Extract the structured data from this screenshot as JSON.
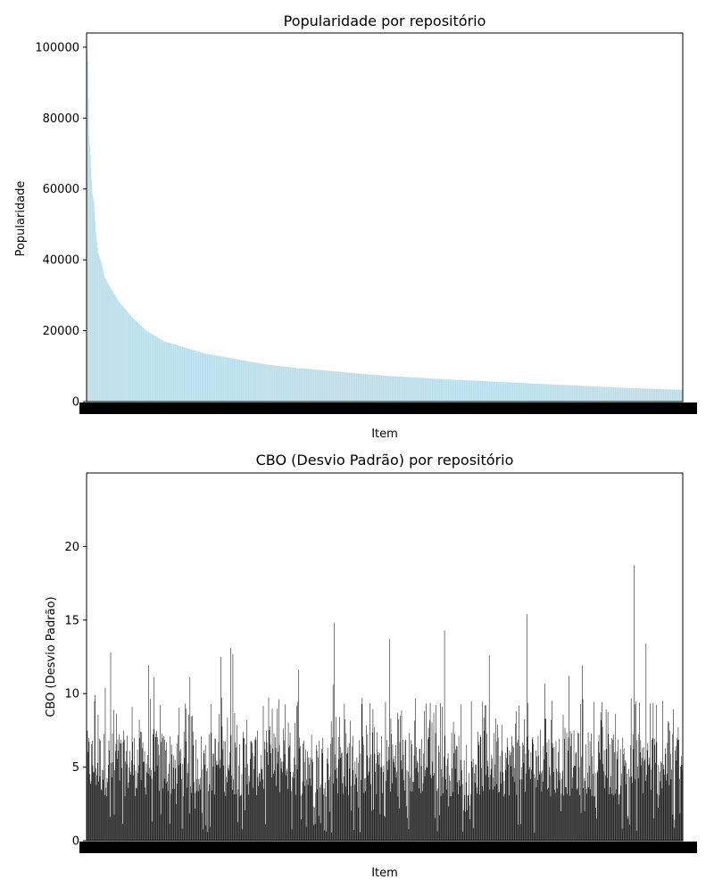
{
  "chart_data": [
    {
      "type": "bar",
      "title": "Popularidade por repositório",
      "xlabel": "Item",
      "ylabel": "Popularidade",
      "ylim": [
        0,
        104000
      ],
      "yticks": [
        0,
        20000,
        40000,
        60000,
        80000,
        100000
      ],
      "ytick_labels": [
        "0",
        "20000",
        "40000",
        "60000",
        "80000",
        "100000"
      ],
      "n_items": 1000,
      "bar_color": "#add8e6",
      "anchors": [
        {
          "i": 0,
          "v": 103000
        },
        {
          "i": 2,
          "v": 96000
        },
        {
          "i": 4,
          "v": 75000
        },
        {
          "i": 6,
          "v": 69500
        },
        {
          "i": 9,
          "v": 59000
        },
        {
          "i": 12,
          "v": 56500
        },
        {
          "i": 15,
          "v": 48000
        },
        {
          "i": 19,
          "v": 42000
        },
        {
          "i": 25,
          "v": 39000
        },
        {
          "i": 30,
          "v": 35000
        },
        {
          "i": 40,
          "v": 32000
        },
        {
          "i": 55,
          "v": 28000
        },
        {
          "i": 75,
          "v": 24000
        },
        {
          "i": 100,
          "v": 20000
        },
        {
          "i": 130,
          "v": 17000
        },
        {
          "i": 160,
          "v": 15500
        },
        {
          "i": 200,
          "v": 13500
        },
        {
          "i": 250,
          "v": 12000
        },
        {
          "i": 300,
          "v": 10500
        },
        {
          "i": 350,
          "v": 9500
        },
        {
          "i": 400,
          "v": 8800
        },
        {
          "i": 450,
          "v": 8000
        },
        {
          "i": 500,
          "v": 7300
        },
        {
          "i": 550,
          "v": 6800
        },
        {
          "i": 600,
          "v": 6300
        },
        {
          "i": 650,
          "v": 5900
        },
        {
          "i": 700,
          "v": 5500
        },
        {
          "i": 750,
          "v": 5100
        },
        {
          "i": 800,
          "v": 4700
        },
        {
          "i": 850,
          "v": 4300
        },
        {
          "i": 900,
          "v": 3900
        },
        {
          "i": 950,
          "v": 3600
        },
        {
          "i": 999,
          "v": 3300
        }
      ]
    },
    {
      "type": "bar",
      "title": "CBO (Desvio Padrão) por repositório",
      "xlabel": "Item",
      "ylabel": "CBO (Desvio Padrão)",
      "ylim": [
        0,
        25
      ],
      "yticks": [
        0,
        5,
        10,
        15,
        20
      ],
      "ytick_labels": [
        "0",
        "5",
        "10",
        "15",
        "20"
      ],
      "n_items": 1000,
      "bar_color": "#000000",
      "typical_range": [
        3,
        7.5
      ],
      "peaks": [
        {
          "i": 14,
          "v": 9.9
        },
        {
          "i": 31,
          "v": 10.4
        },
        {
          "i": 40,
          "v": 12.8
        },
        {
          "i": 104,
          "v": 11.9
        },
        {
          "i": 113,
          "v": 11.1
        },
        {
          "i": 173,
          "v": 11.1
        },
        {
          "i": 225,
          "v": 12.5
        },
        {
          "i": 241,
          "v": 13.1
        },
        {
          "i": 245,
          "v": 12.7
        },
        {
          "i": 355,
          "v": 11.6
        },
        {
          "i": 415,
          "v": 14.8
        },
        {
          "i": 413,
          "v": 10.6
        },
        {
          "i": 508,
          "v": 13.7
        },
        {
          "i": 600,
          "v": 14.3
        },
        {
          "i": 675,
          "v": 12.6
        },
        {
          "i": 738,
          "v": 15.4
        },
        {
          "i": 768,
          "v": 10.7
        },
        {
          "i": 809,
          "v": 11.2
        },
        {
          "i": 831,
          "v": 11.9
        },
        {
          "i": 918,
          "v": 18.7
        },
        {
          "i": 938,
          "v": 13.4
        },
        {
          "i": 966,
          "v": 9.5
        }
      ]
    }
  ]
}
